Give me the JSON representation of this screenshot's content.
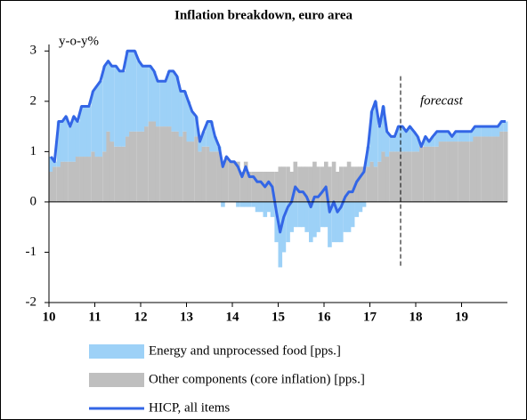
{
  "chart_data": {
    "type": "stacked-bar-line",
    "title": "Inflation breakdown, euro area",
    "y_label": "y-o-y%",
    "annotation": "forecast",
    "forecast_start": 17.67,
    "xlim": [
      10,
      20
    ],
    "xticks": [
      10,
      11,
      12,
      13,
      14,
      15,
      16,
      17,
      18,
      19
    ],
    "ylim": [
      -2,
      3.2
    ],
    "yticks": [
      -2,
      -1,
      0,
      1,
      2,
      3
    ],
    "x": [
      10,
      10.08,
      10.17,
      10.25,
      10.33,
      10.42,
      10.5,
      10.58,
      10.67,
      10.75,
      10.83,
      10.92,
      11,
      11.08,
      11.17,
      11.25,
      11.33,
      11.42,
      11.5,
      11.58,
      11.67,
      11.75,
      11.83,
      11.92,
      12,
      12.08,
      12.17,
      12.25,
      12.33,
      12.42,
      12.5,
      12.58,
      12.67,
      12.75,
      12.83,
      12.92,
      13,
      13.08,
      13.17,
      13.25,
      13.33,
      13.42,
      13.5,
      13.58,
      13.67,
      13.75,
      13.83,
      13.92,
      14,
      14.08,
      14.17,
      14.25,
      14.33,
      14.42,
      14.5,
      14.58,
      14.67,
      14.75,
      14.83,
      14.92,
      15,
      15.08,
      15.17,
      15.25,
      15.33,
      15.42,
      15.5,
      15.58,
      15.67,
      15.75,
      15.83,
      15.92,
      16,
      16.08,
      16.17,
      16.25,
      16.33,
      16.42,
      16.5,
      16.58,
      16.67,
      16.75,
      16.83,
      16.92,
      17,
      17.08,
      17.17,
      17.25,
      17.33,
      17.42,
      17.5,
      17.58,
      17.67,
      17.75,
      17.83,
      17.92,
      18,
      18.08,
      18.17,
      18.25,
      18.33,
      18.42,
      18.5,
      18.58,
      18.67,
      18.75,
      18.83,
      18.92,
      19,
      19.08,
      19.17,
      19.25,
      19.33,
      19.42,
      19.5,
      19.58,
      19.67,
      19.75,
      19.83,
      19.92
    ],
    "series": [
      {
        "name": "Energy and unprocessed food [pps.]",
        "color": "#9dd1f7",
        "kind": "bar",
        "values": [
          0.3,
          0.1,
          0.9,
          0.8,
          0.9,
          0.7,
          0.9,
          0.7,
          1.0,
          1.0,
          1.0,
          1.2,
          1.4,
          1.5,
          1.7,
          1.4,
          1.5,
          1.6,
          1.5,
          1.5,
          1.7,
          1.6,
          1.6,
          1.4,
          1.3,
          1.2,
          1.1,
          1.0,
          0.9,
          0.9,
          0.9,
          1.1,
          1.2,
          1.1,
          0.9,
          0.8,
          0.8,
          0.6,
          0.4,
          0.2,
          0.3,
          0.5,
          0.6,
          0.3,
          0.1,
          -0.1,
          0,
          0,
          0,
          -0.1,
          -0.1,
          -0.1,
          -0.1,
          -0.1,
          -0.2,
          -0.2,
          -0.3,
          -0.2,
          -0.3,
          -0.8,
          -1.3,
          -1.0,
          -0.8,
          -0.6,
          -0.5,
          -0.5,
          -0.5,
          -0.6,
          -0.8,
          -0.7,
          -0.6,
          -0.5,
          -0.5,
          -0.9,
          -0.8,
          -0.8,
          -0.8,
          -0.6,
          -0.6,
          -0.5,
          -0.3,
          -0.2,
          -0.1,
          0.4,
          1.0,
          1.3,
          0.7,
          0.9,
          0.5,
          0.3,
          0.3,
          0.5,
          0.5,
          0.4,
          0.5,
          0.4,
          0.3,
          0,
          0.2,
          0.1,
          0.2,
          0.3,
          0.2,
          0.2,
          0.2,
          0.1,
          0.2,
          0.2,
          0.2,
          0.2,
          0.2,
          0.2,
          0.2,
          0.2,
          0.2,
          0.2,
          0.2,
          0.2,
          0.2,
          0.2
        ]
      },
      {
        "name": "Other components (core inflation) [pps.]",
        "color": "#bfbfbf",
        "kind": "bar",
        "values": [
          0.6,
          0.7,
          0.7,
          0.8,
          0.8,
          0.8,
          0.8,
          0.9,
          0.9,
          0.9,
          0.9,
          1.0,
          0.9,
          0.9,
          1.0,
          1.4,
          1.2,
          1.1,
          1.1,
          1.1,
          1.3,
          1.4,
          1.4,
          1.4,
          1.4,
          1.5,
          1.6,
          1.6,
          1.5,
          1.5,
          1.5,
          1.5,
          1.4,
          1.4,
          1.3,
          1.4,
          1.2,
          1.2,
          1.3,
          1.0,
          1.1,
          1.1,
          1.0,
          1.0,
          1.0,
          0.8,
          0.9,
          0.8,
          0.8,
          0.8,
          0.6,
          0.8,
          0.6,
          0.6,
          0.6,
          0.6,
          0.6,
          0.6,
          0.6,
          0.6,
          0.7,
          0.7,
          0.7,
          0.6,
          0.8,
          0.7,
          0.7,
          0.7,
          0.7,
          0.8,
          0.7,
          0.7,
          0.8,
          0.7,
          0.8,
          0.6,
          0.7,
          0.7,
          0.8,
          0.7,
          0.7,
          0.7,
          0.7,
          0.7,
          0.8,
          0.7,
          0.8,
          1.0,
          0.9,
          1.0,
          1.0,
          1.0,
          1.0,
          1.0,
          1.0,
          1.0,
          1.0,
          1.1,
          1.1,
          1.1,
          1.1,
          1.1,
          1.2,
          1.2,
          1.2,
          1.2,
          1.2,
          1.2,
          1.2,
          1.2,
          1.2,
          1.3,
          1.3,
          1.3,
          1.3,
          1.3,
          1.3,
          1.3,
          1.4,
          1.4
        ]
      },
      {
        "name": "HICP, all items",
        "color": "#3366e6",
        "kind": "line",
        "values": [
          0.9,
          0.8,
          1.6,
          1.6,
          1.7,
          1.5,
          1.7,
          1.6,
          1.9,
          1.9,
          1.9,
          2.2,
          2.3,
          2.4,
          2.7,
          2.8,
          2.7,
          2.7,
          2.6,
          2.6,
          3.0,
          3.0,
          3.0,
          2.8,
          2.7,
          2.7,
          2.7,
          2.6,
          2.4,
          2.4,
          2.4,
          2.6,
          2.6,
          2.5,
          2.2,
          2.2,
          2.0,
          1.8,
          1.7,
          1.2,
          1.4,
          1.6,
          1.6,
          1.3,
          1.1,
          0.7,
          0.9,
          0.8,
          0.8,
          0.7,
          0.5,
          0.7,
          0.5,
          0.5,
          0.4,
          0.4,
          0.3,
          0.4,
          0.3,
          -0.2,
          -0.6,
          -0.3,
          -0.1,
          0.0,
          0.3,
          0.2,
          0.2,
          0.1,
          -0.1,
          0.1,
          0.1,
          0.2,
          0.3,
          -0.2,
          0.0,
          -0.2,
          -0.1,
          0.1,
          0.2,
          0.2,
          0.4,
          0.5,
          0.6,
          1.1,
          1.8,
          2.0,
          1.5,
          1.9,
          1.4,
          1.3,
          1.3,
          1.5,
          1.5,
          1.4,
          1.5,
          1.4,
          1.3,
          1.1,
          1.3,
          1.2,
          1.3,
          1.4,
          1.4,
          1.4,
          1.4,
          1.3,
          1.4,
          1.4,
          1.4,
          1.4,
          1.4,
          1.5,
          1.5,
          1.5,
          1.5,
          1.5,
          1.5,
          1.5,
          1.6,
          1.6
        ]
      }
    ]
  }
}
